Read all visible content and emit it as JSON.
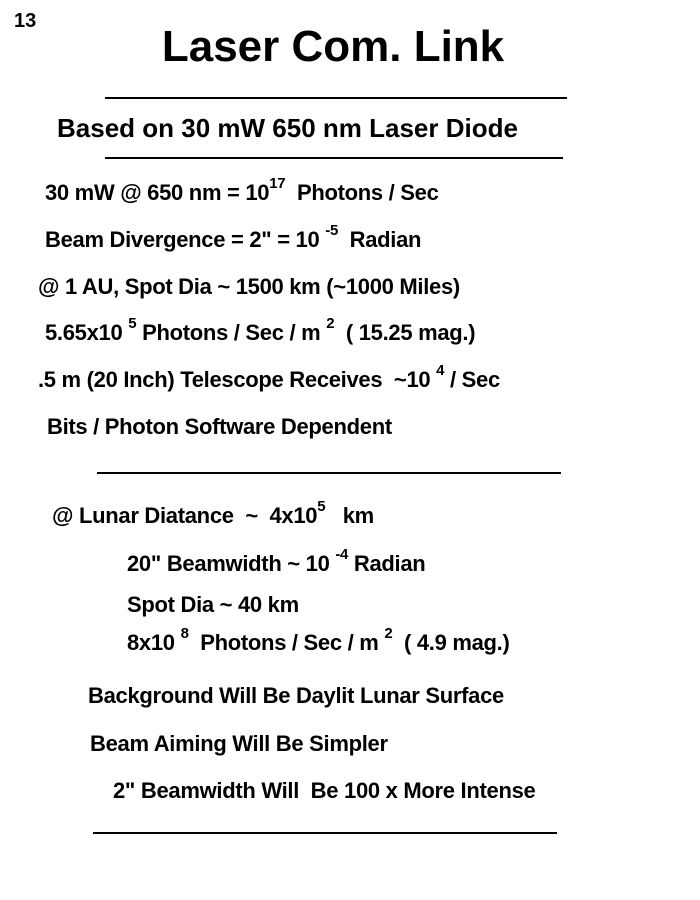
{
  "slide_number": "13",
  "title": "Laser Com. Link",
  "subtitle": "Based on 30 mW 650 nm Laser Diode",
  "lines": [
    {
      "segments": [
        {
          "t": "30 mW @ 650 nm = 10"
        },
        {
          "t": "17",
          "sup": true
        },
        {
          "t": "  Photons / Sec"
        }
      ]
    },
    {
      "segments": [
        {
          "t": "Beam Divergence = 2\" = 10 "
        },
        {
          "t": "-5",
          "sup": true
        },
        {
          "t": "  Radian"
        }
      ]
    },
    {
      "segments": [
        {
          "t": "@ 1 AU, Spot Dia ~ 1500 km (~1000 Miles)"
        }
      ]
    },
    {
      "segments": [
        {
          "t": "5.65x10 "
        },
        {
          "t": "5",
          "sup": true
        },
        {
          "t": " Photons / Sec / m "
        },
        {
          "t": "2",
          "sup": true
        },
        {
          "t": "  ( 15.25 mag.)"
        }
      ]
    },
    {
      "segments": [
        {
          "t": ".5 m (20 Inch) Telescope Receives  ~10 "
        },
        {
          "t": "4",
          "sup": true
        },
        {
          "t": " / Sec"
        }
      ]
    },
    {
      "segments": [
        {
          "t": "Bits / Photon Software Dependent"
        }
      ]
    },
    {
      "segments": [
        {
          "t": "@ Lunar Diatance  ~  4x10"
        },
        {
          "t": "5",
          "sup": true
        },
        {
          "t": "   km"
        }
      ]
    },
    {
      "segments": [
        {
          "t": "20\" Beamwidth ~ 10 "
        },
        {
          "t": "-4",
          "sup": true
        },
        {
          "t": " Radian"
        }
      ]
    },
    {
      "segments": [
        {
          "t": "Spot Dia ~ 40 km"
        }
      ]
    },
    {
      "segments": [
        {
          "t": "8x10 "
        },
        {
          "t": "8",
          "sup": true
        },
        {
          "t": "  Photons / Sec / m "
        },
        {
          "t": "2",
          "sup": true
        },
        {
          "t": "  ( 4.9 mag.)"
        }
      ]
    },
    {
      "segments": [
        {
          "t": "Background Will Be Daylit Lunar Surface"
        }
      ]
    },
    {
      "segments": [
        {
          "t": "Beam Aiming Will Be Simpler"
        }
      ]
    },
    {
      "segments": [
        {
          "t": "2\" Beamwidth Will  Be 100 x More Intense"
        }
      ]
    }
  ]
}
